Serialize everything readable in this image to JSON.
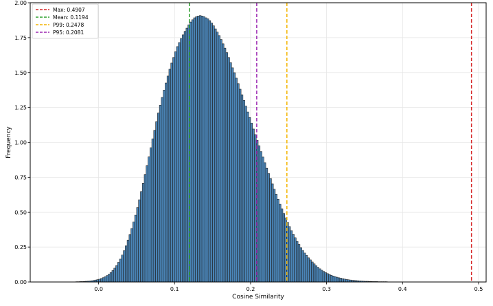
{
  "chart_data": {
    "type": "histogram",
    "title": "",
    "xlabel": "Cosine Similarity",
    "ylabel": "Frequency",
    "xlim": [
      -0.09,
      0.51
    ],
    "ylim": [
      0,
      2.0
    ],
    "grid": true,
    "xticks": [
      0.0,
      0.1,
      0.2,
      0.3,
      0.4,
      0.5
    ],
    "xtick_labels": [
      "0.0",
      "0.1",
      "0.2",
      "0.3",
      "0.4",
      "0.5"
    ],
    "yticks": [
      0,
      0.25,
      0.5,
      0.75,
      1.0,
      1.25,
      1.5,
      1.75,
      2.0
    ],
    "ytick_labels": [
      "0.00",
      "0.25",
      "0.50",
      "0.75",
      "1.00",
      "1.25",
      "1.50",
      "1.75",
      "2.00"
    ],
    "bar_color": "#4a85b8",
    "bar_edge_color": "#1f1f1f",
    "bins": {
      "start": -0.03,
      "width": 0.0025,
      "counts": [
        0.002,
        0.002,
        0.003,
        0.003,
        0.004,
        0.005,
        0.006,
        0.007,
        0.009,
        0.011,
        0.014,
        0.017,
        0.02,
        0.025,
        0.031,
        0.038,
        0.046,
        0.056,
        0.068,
        0.082,
        0.099,
        0.118,
        0.14,
        0.165,
        0.193,
        0.225,
        0.26,
        0.299,
        0.34,
        0.383,
        0.43,
        0.48,
        0.533,
        0.589,
        0.647,
        0.706,
        0.769,
        0.833,
        0.896,
        0.961,
        1.025,
        1.086,
        1.148,
        1.21,
        1.266,
        1.322,
        1.374,
        1.425,
        1.475,
        1.524,
        1.568,
        1.608,
        1.649,
        1.686,
        1.715,
        1.744,
        1.77,
        1.795,
        1.818,
        1.842,
        1.862,
        1.878,
        1.892,
        1.9,
        1.905,
        1.908,
        1.905,
        1.9,
        1.892,
        1.885,
        1.872,
        1.855,
        1.835,
        1.813,
        1.79,
        1.765,
        1.737,
        1.706,
        1.675,
        1.643,
        1.608,
        1.571,
        1.534,
        1.499,
        1.46,
        1.421,
        1.381,
        1.341,
        1.301,
        1.26,
        1.218,
        1.178,
        1.138,
        1.096,
        1.055,
        1.016,
        0.975,
        0.935,
        0.895,
        0.855,
        0.815,
        0.778,
        0.741,
        0.703,
        0.665,
        0.628,
        0.593,
        0.558,
        0.524,
        0.49,
        0.458,
        0.426,
        0.396,
        0.368,
        0.341,
        0.316,
        0.292,
        0.269,
        0.246,
        0.226,
        0.207,
        0.19,
        0.173,
        0.158,
        0.143,
        0.13,
        0.117,
        0.105,
        0.094,
        0.084,
        0.075,
        0.067,
        0.06,
        0.054,
        0.048,
        0.043,
        0.038,
        0.034,
        0.03,
        0.027,
        0.024,
        0.021,
        0.018,
        0.016,
        0.014,
        0.012,
        0.011,
        0.01,
        0.009,
        0.008,
        0.007,
        0.006,
        0.005,
        0.005,
        0.004,
        0.004,
        0.003,
        0.003,
        0.003,
        0.002,
        0.002,
        0.002,
        0.002,
        0.002,
        0.001,
        0.001,
        0.001,
        0.001,
        0.001,
        0.001
      ]
    },
    "vlines": [
      {
        "label": "Max: 0.4907",
        "x": 0.4907,
        "color": "#d62728"
      },
      {
        "label": "Mean: 0.1194",
        "x": 0.1194,
        "color": "#2ca02c"
      },
      {
        "label": "P99: 0.2478",
        "x": 0.2478,
        "color": "#f4b400"
      },
      {
        "label": "P95: 0.2081",
        "x": 0.2081,
        "color": "#9b27b0"
      }
    ],
    "legend_position": "top-left"
  }
}
